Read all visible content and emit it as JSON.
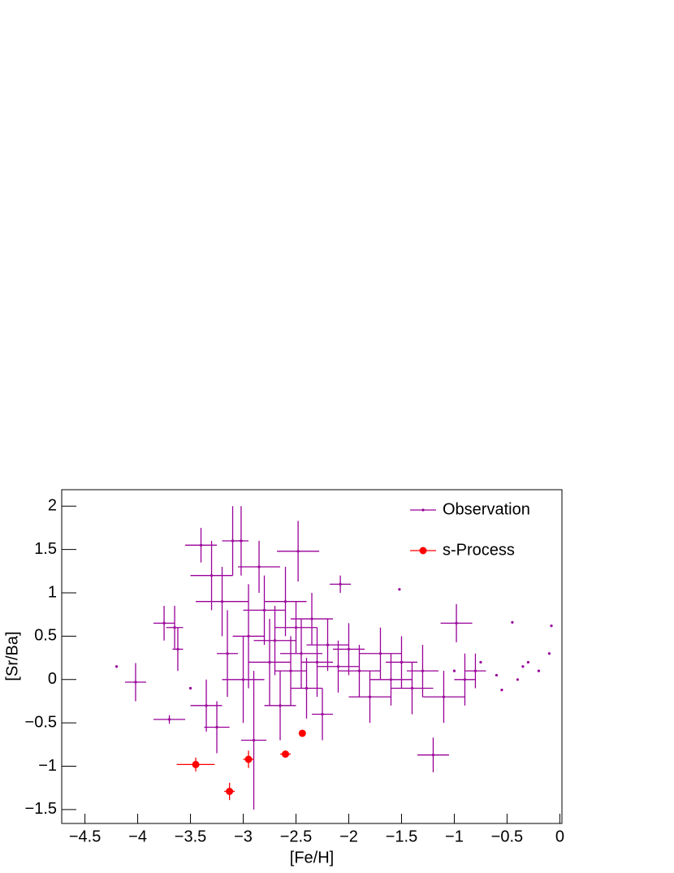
{
  "chart_data": {
    "type": "scatter",
    "xlabel": "[Fe/H]",
    "ylabel": "[Sr/Ba]",
    "xlim": [
      -4.72,
      0.02
    ],
    "ylim": [
      -1.66,
      2.19
    ],
    "xticks": [
      {
        "value": -4.5,
        "label": "−4.5"
      },
      {
        "value": -4,
        "label": "−4"
      },
      {
        "value": -3.5,
        "label": "−3.5"
      },
      {
        "value": -3,
        "label": "−3"
      },
      {
        "value": -2.5,
        "label": "−2.5"
      },
      {
        "value": -2,
        "label": "−2"
      },
      {
        "value": -1.5,
        "label": "−1.5"
      },
      {
        "value": -1,
        "label": "−1"
      },
      {
        "value": -0.5,
        "label": "−0.5"
      },
      0
    ],
    "yticks": [
      {
        "value": -1.5,
        "label": "−1.5"
      },
      {
        "value": -1,
        "label": "−1"
      },
      {
        "value": -0.5,
        "label": "−0.5"
      },
      0,
      0.5,
      1,
      1.5,
      2
    ],
    "legend": "upper right",
    "series": [
      {
        "name": "Observation",
        "color": "#990099",
        "x": [
          -4.02,
          -3.75,
          -3.65,
          -3.62,
          -3.7,
          -3.4,
          -3.3,
          -3.2,
          -3.1,
          -3.02,
          -3.15,
          -3.35,
          -3.25,
          -3.0,
          -2.95,
          -2.9,
          -2.85,
          -2.8,
          -2.75,
          -2.7,
          -2.65,
          -2.6,
          -2.55,
          -2.5,
          -2.48,
          -2.45,
          -2.4,
          -2.35,
          -2.3,
          -2.25,
          -2.2,
          -2.1,
          -2.08,
          -2.0,
          -1.9,
          -1.8,
          -1.7,
          -1.6,
          -1.5,
          -1.4,
          -1.3,
          -1.2,
          -1.1,
          -0.98,
          -0.9,
          -0.8,
          -4.2,
          -3.5,
          -1.0,
          -0.6,
          -0.4,
          -0.3,
          -0.2,
          -0.1,
          -0.08,
          -0.45,
          -0.75,
          -0.55,
          -1.52,
          -0.35
        ],
        "values": [
          -0.03,
          0.65,
          0.6,
          0.35,
          -0.46,
          1.55,
          1.2,
          0.9,
          1.6,
          1.6,
          0.3,
          -0.3,
          -0.55,
          0.0,
          0.5,
          -0.7,
          1.3,
          0.8,
          0.2,
          0.45,
          -0.3,
          0.9,
          0.1,
          0.6,
          1.48,
          0.3,
          -0.1,
          0.7,
          0.2,
          -0.4,
          0.4,
          0.15,
          1.1,
          0.35,
          0.1,
          -0.2,
          0.3,
          0.0,
          0.2,
          -0.1,
          0.1,
          -0.87,
          -0.2,
          0.65,
          0.0,
          0.1,
          0.15,
          -0.1,
          0.1,
          0.05,
          0.0,
          0.2,
          0.1,
          0.3,
          0.62,
          0.66,
          0.2,
          -0.12,
          1.04,
          0.15
        ],
        "xerr": [
          0.1,
          0.1,
          0.08,
          0.05,
          0.15,
          0.15,
          0.2,
          0.25,
          0.1,
          0.07,
          0.1,
          0.15,
          0.12,
          0.2,
          0.15,
          0.12,
          0.2,
          0.2,
          0.2,
          0.2,
          0.15,
          0.2,
          0.15,
          0.2,
          0.2,
          0.2,
          0.15,
          0.2,
          0.15,
          0.1,
          0.2,
          0.2,
          0.1,
          0.15,
          0.2,
          0.2,
          0.2,
          0.2,
          0.15,
          0.2,
          0.15,
          0.15,
          0.2,
          0.15,
          0.1,
          0.1,
          0,
          0,
          0,
          0,
          0,
          0,
          0,
          0,
          0,
          0,
          0,
          0,
          0,
          0
        ],
        "yerr": [
          0.22,
          0.2,
          0.25,
          0.25,
          0.05,
          0.2,
          0.4,
          0.4,
          0.4,
          0.4,
          0.5,
          0.3,
          0.3,
          0.5,
          0.6,
          0.8,
          0.3,
          0.4,
          0.5,
          0.4,
          0.4,
          0.4,
          0.4,
          0.3,
          0.35,
          0.4,
          0.35,
          0.3,
          0.4,
          0.3,
          0.3,
          0.3,
          0.1,
          0.3,
          0.3,
          0.3,
          0.3,
          0.3,
          0.3,
          0.3,
          0.3,
          0.2,
          0.3,
          0.22,
          0.3,
          0.2,
          0,
          0,
          0,
          0,
          0,
          0,
          0,
          0,
          0,
          0,
          0,
          0,
          0,
          0
        ]
      },
      {
        "name": "s-Process",
        "color": "#ff0000",
        "x": [
          -3.45,
          -3.13,
          -2.95,
          -2.6,
          -2.44
        ],
        "values": [
          -0.98,
          -1.29,
          -0.92,
          -0.86,
          -0.62
        ],
        "xerr": [
          0.18,
          0.05,
          0.05,
          0.05,
          0.03
        ],
        "yerr": [
          0.08,
          0.1,
          0.1,
          0.04,
          0.03
        ]
      }
    ]
  }
}
